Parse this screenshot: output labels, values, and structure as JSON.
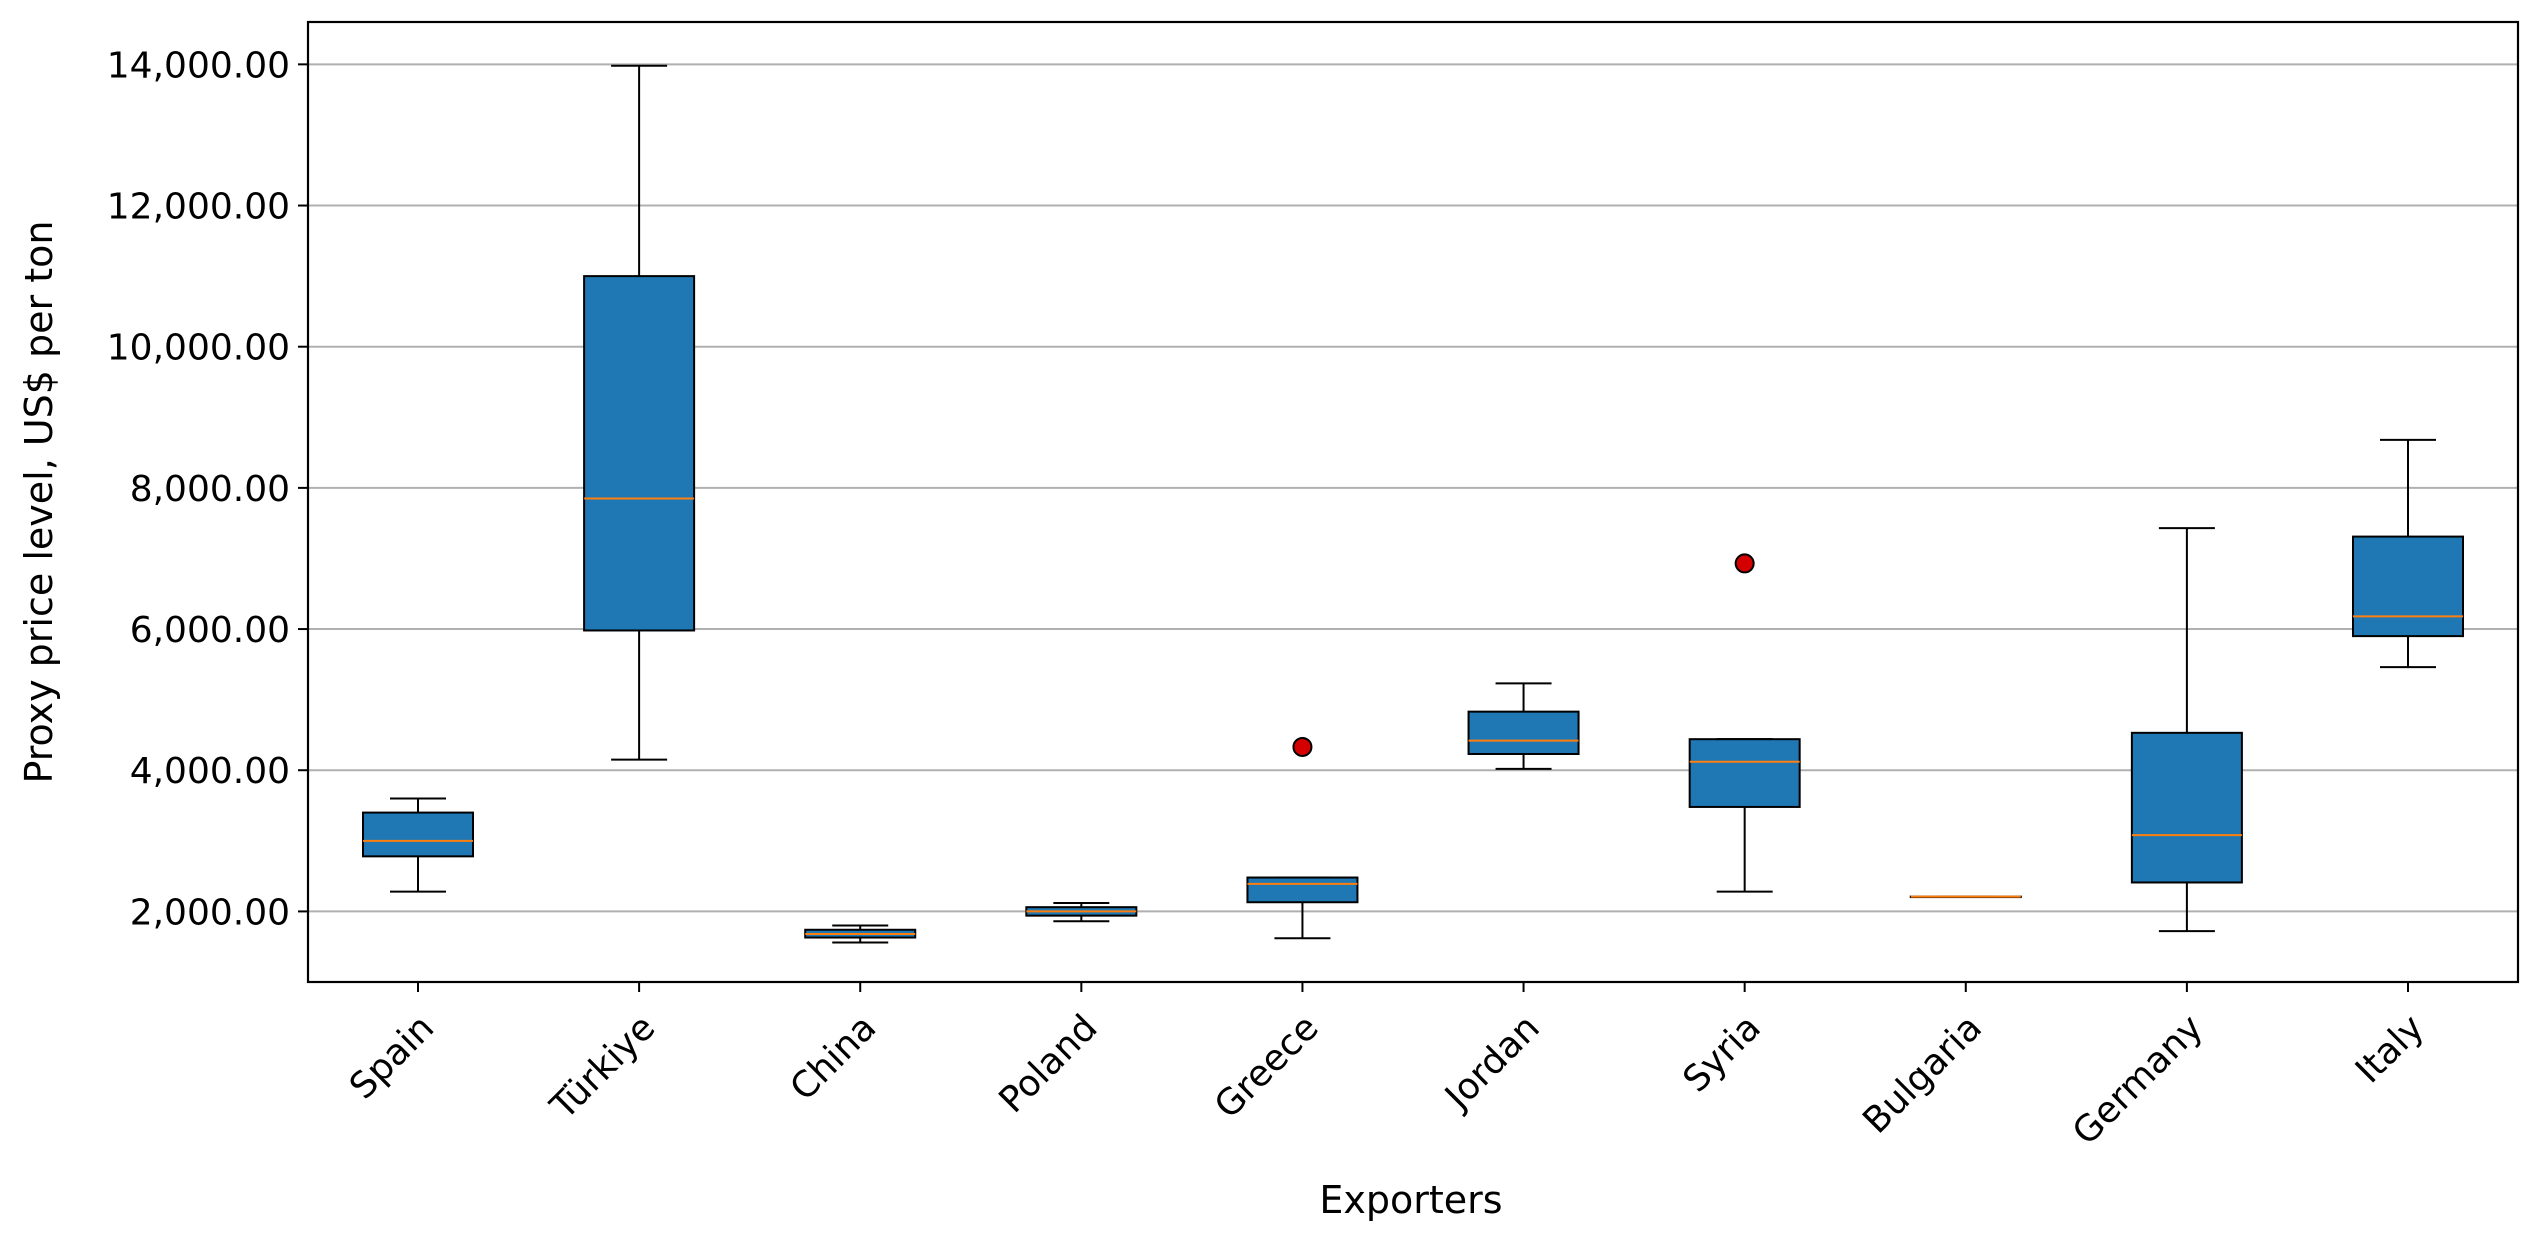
{
  "chart_data": {
    "type": "box",
    "title": "",
    "xlabel": "Exporters",
    "ylabel": "Proxy price level, US$ per ton",
    "ylim": [
      1000,
      14600
    ],
    "y_ticks": [
      2000,
      4000,
      6000,
      8000,
      10000,
      12000,
      14000
    ],
    "y_tick_labels": [
      "2,000.00",
      "4,000.00",
      "6,000.00",
      "8,000.00",
      "10,000.00",
      "12,000.00",
      "14,000.00"
    ],
    "grid": "horizontal",
    "legend": "none",
    "colors": {
      "box_fill": "#1f77b4",
      "median": "#ff7f0e",
      "outlier": "#d40000",
      "grid": "#b0b0b0",
      "edge": "#000000"
    },
    "categories": [
      "Spain",
      "Türkiye",
      "China",
      "Poland",
      "Greece",
      "Jordan",
      "Syria",
      "Bulgaria",
      "Germany",
      "Italy"
    ],
    "boxes": [
      {
        "name": "Spain",
        "whisker_low": 2280,
        "q1": 2780,
        "median": 3000,
        "q3": 3400,
        "whisker_high": 3600,
        "outliers": []
      },
      {
        "name": "Türkiye",
        "whisker_low": 4150,
        "q1": 5980,
        "median": 7850,
        "q3": 11000,
        "whisker_high": 13980,
        "outliers": []
      },
      {
        "name": "China",
        "whisker_low": 1560,
        "q1": 1630,
        "median": 1680,
        "q3": 1740,
        "whisker_high": 1800,
        "outliers": []
      },
      {
        "name": "Poland",
        "whisker_low": 1860,
        "q1": 1940,
        "median": 2000,
        "q3": 2060,
        "whisker_high": 2120,
        "outliers": []
      },
      {
        "name": "Greece",
        "whisker_low": 1620,
        "q1": 2130,
        "median": 2390,
        "q3": 2480,
        "whisker_high": 2480,
        "outliers": [
          4330
        ]
      },
      {
        "name": "Jordan",
        "whisker_low": 4020,
        "q1": 4230,
        "median": 4420,
        "q3": 4830,
        "whisker_high": 5230,
        "outliers": []
      },
      {
        "name": "Syria",
        "whisker_low": 2280,
        "q1": 3480,
        "median": 4120,
        "q3": 4440,
        "whisker_high": 4440,
        "outliers": [
          6930
        ]
      },
      {
        "name": "Bulgaria",
        "whisker_low": 2210,
        "q1": 2210,
        "median": 2210,
        "q3": 2210,
        "whisker_high": 2210,
        "outliers": []
      },
      {
        "name": "Germany",
        "whisker_low": 1720,
        "q1": 2410,
        "median": 3080,
        "q3": 4530,
        "whisker_high": 7430,
        "outliers": []
      },
      {
        "name": "Italy",
        "whisker_low": 5460,
        "q1": 5900,
        "median": 6180,
        "q3": 7310,
        "whisker_high": 8680,
        "outliers": []
      }
    ]
  }
}
